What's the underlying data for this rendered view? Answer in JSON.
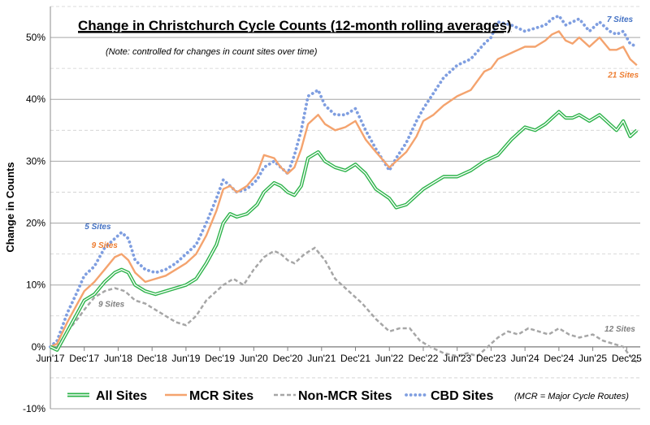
{
  "chart_data": {
    "type": "line",
    "title": "Change in Christchurch Cycle Counts (12-month rolling averages)",
    "note": "(Note: controlled for changes in count sites over time)",
    "ylabel": "Change in Counts",
    "xlabel": "",
    "ylim": [
      -10,
      55
    ],
    "xlim": [
      2017.5,
      2026.2
    ],
    "y_ticks": [
      -10,
      0,
      10,
      20,
      30,
      40,
      50
    ],
    "y_tick_labels": [
      "-10%",
      "0%",
      "10%",
      "20%",
      "30%",
      "40%",
      "50%"
    ],
    "x_ticks": [
      2017.5,
      2018.0,
      2018.5,
      2019.0,
      2019.5,
      2020.0,
      2020.5,
      2021.0,
      2021.5,
      2022.0,
      2022.5,
      2023.0,
      2023.5,
      2024.0,
      2024.5,
      2025.0,
      2025.5,
      2026.0
    ],
    "x_tick_labels": [
      "Jun'17",
      "Dec'17",
      "Jun'18",
      "Dec'18",
      "Jun'19",
      "Dec'19",
      "Jun'20",
      "Dec'20",
      "Jun'21",
      "Dec'21",
      "Jun'22",
      "Dec'22",
      "Jun'23",
      "Dec'23",
      "Jun'24",
      "Dec'24",
      "Jun'25",
      "Dec'25"
    ],
    "grid": true,
    "legend_position": "bottom",
    "legend_note": "(MCR = Major Cycle Routes)",
    "series": [
      {
        "name": "All Sites",
        "color": "#2db34a",
        "style": "double",
        "x": [
          2017.5,
          2017.6,
          2017.75,
          2017.9,
          2018.0,
          2018.15,
          2018.3,
          2018.45,
          2018.55,
          2018.65,
          2018.75,
          2018.9,
          2019.05,
          2019.2,
          2019.35,
          2019.5,
          2019.65,
          2019.8,
          2019.95,
          2020.05,
          2020.15,
          2020.25,
          2020.4,
          2020.55,
          2020.65,
          2020.8,
          2020.9,
          2021.0,
          2021.1,
          2021.2,
          2021.3,
          2021.45,
          2021.55,
          2021.7,
          2021.85,
          2022.0,
          2022.15,
          2022.3,
          2022.5,
          2022.6,
          2022.75,
          2022.9,
          2023.0,
          2023.15,
          2023.3,
          2023.5,
          2023.7,
          2023.9,
          2024.0,
          2024.1,
          2024.3,
          2024.5,
          2024.65,
          2024.8,
          2024.9,
          2025.0,
          2025.1,
          2025.2,
          2025.3,
          2025.45,
          2025.6,
          2025.75,
          2025.85,
          2025.95,
          2026.05,
          2026.15
        ],
        "values": [
          0,
          -0.5,
          2.5,
          5.5,
          7.5,
          8.5,
          10.5,
          12.0,
          12.5,
          12.0,
          10.0,
          9.0,
          8.5,
          9.0,
          9.5,
          10.0,
          11.0,
          13.5,
          16.5,
          20.0,
          21.5,
          21.0,
          21.5,
          23.0,
          25.0,
          26.5,
          26.0,
          25.0,
          24.5,
          26.0,
          30.5,
          31.5,
          30.0,
          29.0,
          28.5,
          29.5,
          28.0,
          25.5,
          24.0,
          22.5,
          23.0,
          24.5,
          25.5,
          26.5,
          27.5,
          27.5,
          28.5,
          30.0,
          30.5,
          31.0,
          33.5,
          35.5,
          35.0,
          36.0,
          37.0,
          38.0,
          37.0,
          37.0,
          37.5,
          36.5,
          37.5,
          36.0,
          35.0,
          36.5,
          34.0,
          35.0
        ]
      },
      {
        "name": "MCR Sites",
        "color": "#f4a36e",
        "style": "solid",
        "label": "21 Sites",
        "x": [
          2017.5,
          2017.6,
          2017.75,
          2017.9,
          2018.0,
          2018.15,
          2018.3,
          2018.45,
          2018.55,
          2018.65,
          2018.75,
          2018.9,
          2019.05,
          2019.2,
          2019.35,
          2019.5,
          2019.65,
          2019.8,
          2019.95,
          2020.05,
          2020.15,
          2020.25,
          2020.4,
          2020.55,
          2020.65,
          2020.8,
          2020.9,
          2021.0,
          2021.1,
          2021.2,
          2021.3,
          2021.45,
          2021.55,
          2021.7,
          2021.85,
          2022.0,
          2022.15,
          2022.3,
          2022.5,
          2022.6,
          2022.75,
          2022.9,
          2023.0,
          2023.15,
          2023.3,
          2023.5,
          2023.7,
          2023.9,
          2024.0,
          2024.1,
          2024.3,
          2024.5,
          2024.65,
          2024.8,
          2024.9,
          2025.0,
          2025.1,
          2025.2,
          2025.3,
          2025.45,
          2025.6,
          2025.75,
          2025.85,
          2025.95,
          2026.05,
          2026.15
        ],
        "values": [
          0,
          0.5,
          4.0,
          7.0,
          9.0,
          10.5,
          12.5,
          14.5,
          15.0,
          14.0,
          12.0,
          10.5,
          11.0,
          11.5,
          12.5,
          13.5,
          15.0,
          18.0,
          22.0,
          25.5,
          26.0,
          25.0,
          26.0,
          28.0,
          31.0,
          30.5,
          29.0,
          28.0,
          29.0,
          32.0,
          36.0,
          37.5,
          36.0,
          35.0,
          35.5,
          36.5,
          33.5,
          31.5,
          29.0,
          30.0,
          31.5,
          34.0,
          36.5,
          37.5,
          39.0,
          40.5,
          41.5,
          44.5,
          45.0,
          46.5,
          47.5,
          48.5,
          48.5,
          49.5,
          50.5,
          51.0,
          49.5,
          49.0,
          50.0,
          48.5,
          50.0,
          48.0,
          48.0,
          48.5,
          46.5,
          45.5
        ]
      },
      {
        "name": "Non-MCR Sites",
        "color": "#a6a6a6",
        "style": "dashed",
        "label": "12 Sites",
        "x": [
          2017.5,
          2017.6,
          2017.75,
          2017.9,
          2018.0,
          2018.15,
          2018.3,
          2018.45,
          2018.6,
          2018.75,
          2018.9,
          2019.05,
          2019.2,
          2019.35,
          2019.5,
          2019.65,
          2019.8,
          2019.95,
          2020.05,
          2020.2,
          2020.35,
          2020.5,
          2020.65,
          2020.8,
          2020.9,
          2021.0,
          2021.1,
          2021.25,
          2021.4,
          2021.55,
          2021.7,
          2021.9,
          2022.1,
          2022.3,
          2022.5,
          2022.65,
          2022.8,
          2022.95,
          2023.1,
          2023.3,
          2023.5,
          2023.65,
          2023.8,
          2023.95,
          2024.1,
          2024.25,
          2024.4,
          2024.55,
          2024.7,
          2024.85,
          2025.0,
          2025.15,
          2025.3,
          2025.5,
          2025.65,
          2025.8,
          2025.95,
          2026.05,
          2026.15
        ],
        "values": [
          0,
          0,
          2.5,
          4.5,
          6.0,
          8.0,
          9.0,
          9.5,
          9.0,
          7.5,
          7.0,
          6.0,
          5.0,
          4.0,
          3.5,
          5.0,
          7.5,
          9.0,
          10.0,
          11.0,
          10.0,
          12.5,
          14.5,
          15.5,
          15.0,
          14.0,
          13.5,
          15.0,
          16.0,
          14.0,
          11.0,
          9.0,
          7.0,
          4.5,
          2.5,
          3.0,
          3.0,
          1.0,
          0,
          -1.0,
          -1.5,
          -1.0,
          -1.5,
          0,
          1.5,
          2.5,
          2.0,
          3.0,
          2.5,
          2.0,
          3.0,
          2.0,
          1.5,
          2.0,
          1.0,
          0.5,
          0,
          -1.5,
          -2.5
        ]
      },
      {
        "name": "CBD Sites",
        "color": "#7f9ee0",
        "style": "dotted",
        "label": "7 Sites",
        "x": [
          2017.5,
          2017.6,
          2017.75,
          2017.9,
          2018.0,
          2018.15,
          2018.3,
          2018.45,
          2018.55,
          2018.65,
          2018.75,
          2018.9,
          2019.05,
          2019.2,
          2019.35,
          2019.5,
          2019.65,
          2019.8,
          2019.95,
          2020.05,
          2020.15,
          2020.25,
          2020.4,
          2020.55,
          2020.65,
          2020.8,
          2020.9,
          2021.0,
          2021.1,
          2021.2,
          2021.3,
          2021.45,
          2021.55,
          2021.7,
          2021.85,
          2022.0,
          2022.15,
          2022.3,
          2022.5,
          2022.6,
          2022.75,
          2022.9,
          2023.0,
          2023.15,
          2023.3,
          2023.5,
          2023.7,
          2023.9,
          2024.0,
          2024.1,
          2024.3,
          2024.5,
          2024.65,
          2024.8,
          2024.9,
          2025.0,
          2025.1,
          2025.2,
          2025.3,
          2025.45,
          2025.6,
          2025.75,
          2025.85,
          2025.95,
          2026.05,
          2026.15
        ],
        "values": [
          0,
          1.0,
          5.5,
          9.0,
          11.5,
          13.0,
          16.0,
          17.5,
          18.5,
          17.5,
          14.0,
          12.5,
          12.0,
          12.5,
          13.5,
          15.0,
          16.5,
          20.0,
          24.0,
          27.0,
          26.0,
          25.0,
          25.5,
          27.0,
          29.0,
          30.0,
          29.0,
          28.0,
          31.0,
          35.0,
          40.5,
          41.5,
          39.0,
          37.5,
          37.5,
          38.5,
          35.0,
          32.0,
          28.5,
          30.5,
          33.0,
          36.5,
          38.5,
          41.0,
          43.5,
          45.5,
          46.5,
          49.0,
          50.0,
          52.5,
          52.0,
          51.0,
          51.5,
          52.0,
          53.0,
          53.5,
          52.0,
          52.5,
          53.0,
          51.0,
          52.5,
          51.0,
          50.5,
          51.0,
          49.0,
          48.5
        ]
      }
    ],
    "annotations": [
      {
        "text": "5 Sites",
        "x": 2018.2,
        "y": 19,
        "color": "#4472c4"
      },
      {
        "text": "9 Sites",
        "x": 2018.3,
        "y": 16,
        "color": "#ed7d31"
      },
      {
        "text": "9 Sites",
        "x": 2018.4,
        "y": 6.5,
        "color": "#7f7f7f"
      },
      {
        "text": "7 Sites",
        "x": 2025.9,
        "y": 52.5,
        "color": "#4472c4"
      },
      {
        "text": "21 Sites",
        "x": 2025.95,
        "y": 43.5,
        "color": "#ed7d31"
      },
      {
        "text": "12 Sites",
        "x": 2025.9,
        "y": 2.5,
        "color": "#7f7f7f"
      }
    ]
  }
}
